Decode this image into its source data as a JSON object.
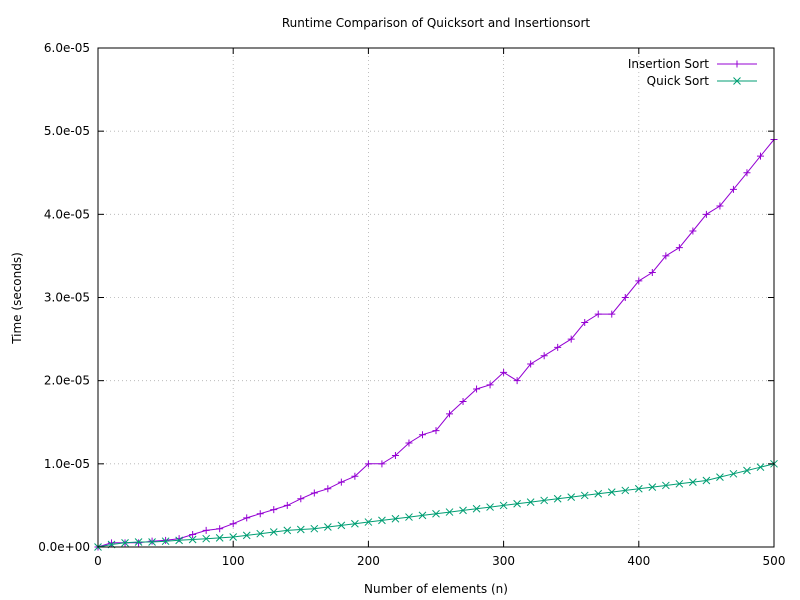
{
  "chart_data": {
    "type": "line",
    "title": "Runtime Comparison of Quicksort and Insertionsort",
    "xlabel": "Number of elements (n)",
    "ylabel": "Time (seconds)",
    "xlim": [
      0,
      500
    ],
    "ylim": [
      0,
      6e-05
    ],
    "x_ticks": [
      0,
      100,
      200,
      300,
      400,
      500
    ],
    "x_tick_labels": [
      "0",
      "100",
      "200",
      "300",
      "400",
      "500"
    ],
    "y_ticks": [
      0,
      1e-05,
      2e-05,
      3e-05,
      4e-05,
      5e-05,
      6e-05
    ],
    "y_tick_labels": [
      "0.0e+00",
      "1.0e-05",
      "2.0e-05",
      "3.0e-05",
      "4.0e-05",
      "5.0e-05",
      "6.0e-05"
    ],
    "grid": true,
    "legend_position": "top-right",
    "series": [
      {
        "name": "Insertion Sort",
        "color": "#9400d3",
        "marker": "plus",
        "x": [
          0,
          10,
          20,
          30,
          40,
          50,
          60,
          70,
          80,
          90,
          100,
          110,
          120,
          130,
          140,
          150,
          160,
          170,
          180,
          190,
          200,
          210,
          220,
          230,
          240,
          250,
          260,
          270,
          280,
          290,
          300,
          310,
          320,
          330,
          340,
          350,
          360,
          370,
          380,
          390,
          400,
          410,
          420,
          430,
          440,
          450,
          460,
          470,
          480,
          490,
          500
        ],
        "y": [
          0,
          5e-07,
          5e-07,
          5e-07,
          7e-07,
          8e-07,
          1e-06,
          1.5e-06,
          2e-06,
          2.2e-06,
          2.8e-06,
          3.5e-06,
          4e-06,
          4.5e-06,
          5e-06,
          5.8e-06,
          6.5e-06,
          7e-06,
          7.8e-06,
          8.5e-06,
          1e-05,
          1e-05,
          1.1e-05,
          1.25e-05,
          1.35e-05,
          1.4e-05,
          1.6e-05,
          1.75e-05,
          1.9e-05,
          1.95e-05,
          2.1e-05,
          2e-05,
          2.2e-05,
          2.3e-05,
          2.4e-05,
          2.5e-05,
          2.7e-05,
          2.8e-05,
          2.8e-05,
          3e-05,
          3.2e-05,
          3.3e-05,
          3.5e-05,
          3.6e-05,
          3.8e-05,
          4e-05,
          4.1e-05,
          4.3e-05,
          4.5e-05,
          4.7e-05,
          4.9e-05
        ]
      },
      {
        "name": "Quick Sort",
        "color": "#009e73",
        "marker": "cross",
        "x": [
          0,
          10,
          20,
          30,
          40,
          50,
          60,
          70,
          80,
          90,
          100,
          110,
          120,
          130,
          140,
          150,
          160,
          170,
          180,
          190,
          200,
          210,
          220,
          230,
          240,
          250,
          260,
          270,
          280,
          290,
          300,
          310,
          320,
          330,
          340,
          350,
          360,
          370,
          380,
          390,
          400,
          410,
          420,
          430,
          440,
          450,
          460,
          470,
          480,
          490,
          500
        ],
        "y": [
          0,
          3e-07,
          5e-07,
          6e-07,
          6e-07,
          7e-07,
          8e-07,
          9e-07,
          1e-06,
          1.1e-06,
          1.2e-06,
          1.4e-06,
          1.6e-06,
          1.8e-06,
          2e-06,
          2.1e-06,
          2.2e-06,
          2.4e-06,
          2.6e-06,
          2.8e-06,
          3e-06,
          3.2e-06,
          3.4e-06,
          3.6e-06,
          3.8e-06,
          4e-06,
          4.2e-06,
          4.4e-06,
          4.6e-06,
          4.8e-06,
          5e-06,
          5.2e-06,
          5.4e-06,
          5.6e-06,
          5.8e-06,
          6e-06,
          6.2e-06,
          6.4e-06,
          6.6e-06,
          6.8e-06,
          7e-06,
          7.2e-06,
          7.4e-06,
          7.6e-06,
          7.8e-06,
          8e-06,
          8.4e-06,
          8.8e-06,
          9.2e-06,
          9.6e-06,
          1e-05
        ]
      }
    ]
  }
}
